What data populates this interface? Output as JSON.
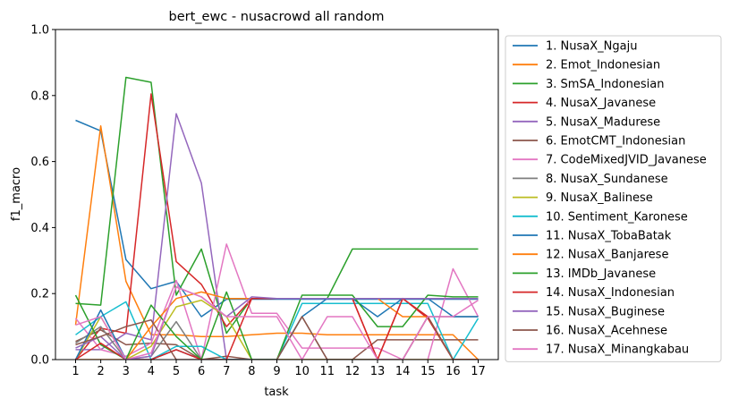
{
  "chart_data": {
    "type": "line",
    "title": "bert_ewc - nusacrowd all random",
    "xlabel": "task",
    "ylabel": "f1_macro",
    "ylim": [
      0,
      1
    ],
    "x": [
      1,
      2,
      3,
      4,
      5,
      6,
      7,
      8,
      9,
      10,
      11,
      12,
      13,
      14,
      15,
      16,
      17
    ],
    "x_ticks": [
      "1",
      "2",
      "3",
      "4",
      "5",
      "6",
      "7",
      "8",
      "9",
      "10",
      "11",
      "12",
      "13",
      "14",
      "15",
      "16",
      "17"
    ],
    "y_ticks": [
      "0.0",
      "0.2",
      "0.4",
      "0.6",
      "0.8",
      "1.0"
    ],
    "grid": false,
    "legend_position": "outside-right",
    "series": [
      {
        "name": "1. NusaX_Ngaju",
        "color": "#1f77b4",
        "values": [
          0.725,
          0.693,
          0.303,
          0.215,
          0.237,
          0.13,
          0.183,
          0.183,
          0.183,
          0.183,
          0.183,
          0.183,
          0.183,
          0.183,
          0.183,
          0.183,
          0.183
        ]
      },
      {
        "name": "2. Emot_Indonesian",
        "color": "#ff7f0e",
        "values": [
          0.105,
          0.708,
          0.237,
          0.075,
          0.075,
          0.07,
          0.07,
          0.075,
          0.08,
          0.08,
          0.075,
          0.075,
          0.075,
          0.075,
          0.075,
          0.075,
          0.0
        ]
      },
      {
        "name": "3. SmSA_Indonesian",
        "color": "#2ca02c",
        "values": [
          0.17,
          0.165,
          0.855,
          0.84,
          0.195,
          0.335,
          0.08,
          0.185,
          0.185,
          0.185,
          0.185,
          0.335,
          0.335,
          0.335,
          0.335,
          0.335,
          0.335
        ]
      },
      {
        "name": "4. NusaX_Javanese",
        "color": "#d62728",
        "values": [
          0.0,
          0.095,
          0.08,
          0.805,
          0.297,
          0.228,
          0.1,
          0.185,
          0.185,
          0.185,
          0.185,
          0.185,
          0.0,
          0.185,
          0.125,
          0.0,
          0.0
        ]
      },
      {
        "name": "5. NusaX_Madurese",
        "color": "#9467bd",
        "values": [
          0.03,
          0.03,
          0.08,
          0.06,
          0.745,
          0.535,
          0.0,
          0.0,
          0.0,
          0.0,
          0.0,
          0.0,
          0.0,
          0.0,
          0.0,
          0.0,
          0.0
        ]
      },
      {
        "name": "6. EmotCMT_Indonesian",
        "color": "#8c564b",
        "values": [
          0.055,
          0.09,
          0.045,
          0.05,
          0.045,
          0.0,
          0.01,
          0.0,
          0.0,
          0.0,
          0.0,
          0.0,
          0.06,
          0.06,
          0.06,
          0.06,
          0.06
        ]
      },
      {
        "name": "7. CodeMixedJVID_Javanese",
        "color": "#e377c2",
        "values": [
          0.125,
          0.03,
          0.01,
          0.05,
          0.24,
          0.0,
          0.35,
          0.14,
          0.14,
          0.035,
          0.035,
          0.035,
          0.035,
          0.0,
          0.0,
          0.275,
          0.13
        ]
      },
      {
        "name": "8. NusaX_Sundanese",
        "color": "#7f7f7f",
        "values": [
          0.05,
          0.1,
          0.0,
          0.01,
          0.115,
          0.0,
          0.0,
          0.0,
          0.0,
          0.13,
          0.0,
          0.0,
          0.0,
          0.0,
          0.13,
          0.13,
          0.13
        ]
      },
      {
        "name": "9. NusaX_Balinese",
        "color": "#bcbd22",
        "values": [
          0.0,
          0.13,
          0.0,
          0.04,
          0.16,
          0.18,
          0.13,
          0.0,
          0.0,
          0.0,
          0.0,
          0.0,
          0.0,
          0.0,
          0.0,
          0.0,
          0.0
        ]
      },
      {
        "name": "10. Sentiment_Karonese",
        "color": "#17becf",
        "values": [
          0.075,
          0.13,
          0.175,
          0.0,
          0.04,
          0.04,
          0.0,
          0.0,
          0.0,
          0.17,
          0.17,
          0.17,
          0.17,
          0.17,
          0.17,
          0.0,
          0.125
        ]
      },
      {
        "name": "11. NusaX_TobaBatak",
        "color": "#1f77b4",
        "values": [
          0.0,
          0.15,
          0.0,
          0.0,
          0.03,
          0.0,
          0.0,
          0.0,
          0.0,
          0.13,
          0.185,
          0.185,
          0.13,
          0.185,
          0.185,
          0.13,
          0.13
        ]
      },
      {
        "name": "12. NusaX_Banjarese",
        "color": "#ff7f0e",
        "values": [
          0.0,
          0.0,
          0.0,
          0.1,
          0.185,
          0.205,
          0.185,
          0.185,
          0.185,
          0.185,
          0.185,
          0.185,
          0.185,
          0.13,
          0.13,
          0.0,
          0.0
        ]
      },
      {
        "name": "13. IMDb_Javanese",
        "color": "#2ca02c",
        "values": [
          0.195,
          0.045,
          0.0,
          0.165,
          0.07,
          0.0,
          0.205,
          0.0,
          0.0,
          0.195,
          0.195,
          0.195,
          0.1,
          0.1,
          0.195,
          0.19,
          0.19
        ]
      },
      {
        "name": "14. NusaX_Indonesian",
        "color": "#d62728",
        "values": [
          0.0,
          0.05,
          0.0,
          0.0,
          0.03,
          0.0,
          0.0,
          0.185,
          0.185,
          0.185,
          0.185,
          0.185,
          0.0,
          0.185,
          0.13,
          0.0,
          0.0
        ]
      },
      {
        "name": "15. NusaX_Buginese",
        "color": "#9467bd",
        "values": [
          0.035,
          0.07,
          0.0,
          0.01,
          0.22,
          0.19,
          0.13,
          0.19,
          0.185,
          0.185,
          0.185,
          0.185,
          0.185,
          0.185,
          0.185,
          0.185,
          0.185
        ]
      },
      {
        "name": "16. NusaX_Acehnese",
        "color": "#8c564b",
        "values": [
          0.045,
          0.07,
          0.1,
          0.12,
          0.0,
          0.0,
          0.0,
          0.0,
          0.0,
          0.13,
          0.0,
          0.0,
          0.0,
          0.0,
          0.13,
          0.0,
          0.0
        ]
      },
      {
        "name": "17. NusaX_Minangkabau",
        "color": "#e377c2",
        "values": [
          0.105,
          0.13,
          0.0,
          0.02,
          0.22,
          0.19,
          0.13,
          0.13,
          0.13,
          0.0,
          0.13,
          0.13,
          0.0,
          0.0,
          0.13,
          0.13,
          0.18
        ]
      }
    ]
  }
}
